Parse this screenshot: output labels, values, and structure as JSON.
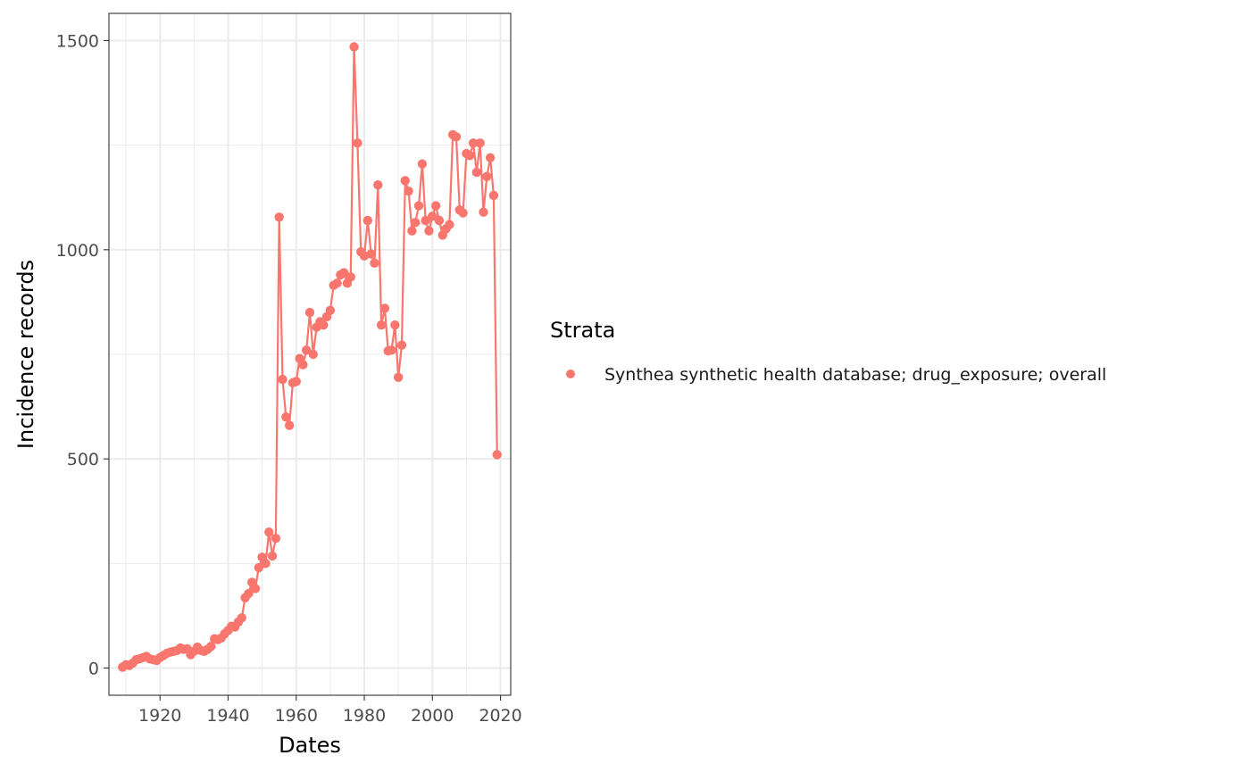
{
  "chart_data": {
    "type": "line",
    "title": "",
    "xlabel": "Dates",
    "ylabel": "Incidence records",
    "xlim": [
      1905,
      2023
    ],
    "ylim": [
      -65,
      1565
    ],
    "x_ticks": [
      1920,
      1940,
      1960,
      1980,
      2000,
      2020
    ],
    "x_tick_labels": [
      "1920",
      "1940",
      "1960",
      "1980",
      "2000",
      "2020"
    ],
    "y_ticks": [
      0,
      500,
      1000,
      1500
    ],
    "y_tick_labels": [
      "0",
      "500",
      "1000",
      "1500"
    ],
    "grid": true,
    "legend": {
      "title": "Strata",
      "position": "right"
    },
    "colors": {
      "series": "#F8766D",
      "grid": "#ebebeb",
      "panel_border": "#333333"
    },
    "series": [
      {
        "name": "Synthea synthetic health database; drug_exposure; overall",
        "x": [
          1909,
          1910,
          1911,
          1912,
          1913,
          1914,
          1915,
          1916,
          1917,
          1918,
          1919,
          1920,
          1921,
          1922,
          1923,
          1924,
          1925,
          1926,
          1927,
          1928,
          1929,
          1930,
          1931,
          1932,
          1933,
          1934,
          1935,
          1936,
          1937,
          1938,
          1939,
          1940,
          1941,
          1942,
          1943,
          1944,
          1945,
          1946,
          1947,
          1948,
          1949,
          1950,
          1951,
          1952,
          1953,
          1954,
          1955,
          1956,
          1957,
          1958,
          1959,
          1960,
          1961,
          1962,
          1963,
          1964,
          1965,
          1966,
          1967,
          1968,
          1969,
          1970,
          1971,
          1972,
          1973,
          1974,
          1975,
          1976,
          1977,
          1978,
          1979,
          1980,
          1981,
          1982,
          1983,
          1984,
          1985,
          1986,
          1987,
          1988,
          1989,
          1990,
          1991,
          1992,
          1993,
          1994,
          1995,
          1996,
          1997,
          1998,
          1999,
          2000,
          2001,
          2002,
          2003,
          2004,
          2005,
          2006,
          2007,
          2008,
          2009,
          2010,
          2011,
          2012,
          2013,
          2014,
          2015,
          2016,
          2017,
          2018,
          2019
        ],
        "values": [
          2,
          8,
          6,
          12,
          20,
          22,
          25,
          28,
          22,
          20,
          18,
          25,
          30,
          35,
          38,
          40,
          42,
          48,
          45,
          46,
          32,
          40,
          50,
          42,
          40,
          45,
          52,
          70,
          68,
          72,
          82,
          90,
          100,
          98,
          110,
          120,
          168,
          178,
          205,
          190,
          240,
          265,
          250,
          325,
          268,
          310,
          1078,
          690,
          600,
          580,
          682,
          685,
          740,
          725,
          760,
          850,
          750,
          815,
          828,
          820,
          840,
          855,
          915,
          920,
          940,
          945,
          920,
          935,
          1485,
          1255,
          995,
          985,
          1070,
          990,
          968,
          1155,
          820,
          860,
          758,
          760,
          820,
          695,
          772,
          1165,
          1140,
          1045,
          1065,
          1105,
          1205,
          1070,
          1045,
          1080,
          1105,
          1070,
          1035,
          1050,
          1060,
          1275,
          1270,
          1095,
          1088,
          1230,
          1225,
          1255,
          1185,
          1255,
          1090,
          1175,
          1220,
          1130,
          510
        ]
      }
    ]
  }
}
